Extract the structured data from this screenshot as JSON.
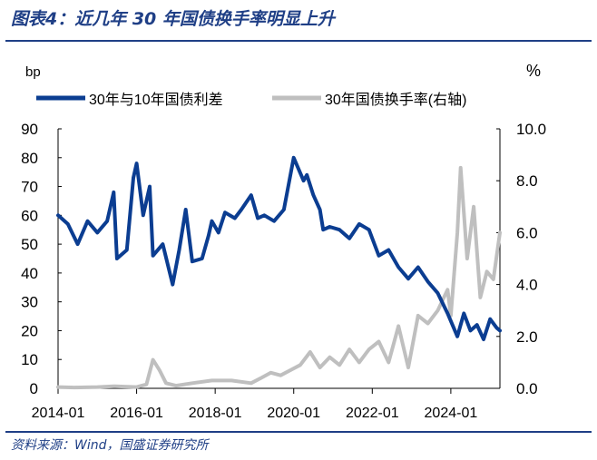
{
  "header": {
    "title": "图表4：近几年 30 年国债换手率明显上升"
  },
  "footer": {
    "source": "资料来源：Wind，国盛证券研究所"
  },
  "chart_data": {
    "type": "line",
    "title": "",
    "y_left_unit": "bp",
    "y_right_unit": "%",
    "ylim_left": [
      0,
      90
    ],
    "ylim_right": [
      0,
      10
    ],
    "y_left_ticks": [
      "0",
      "10",
      "20",
      "30",
      "40",
      "50",
      "60",
      "70",
      "80",
      "90"
    ],
    "y_right_ticks": [
      "0.0",
      "2.0",
      "4.0",
      "6.0",
      "8.0",
      "10.0"
    ],
    "x_ticks": [
      "2014-01",
      "2016-01",
      "2018-01",
      "2020-01",
      "2022-01",
      "2024-01"
    ],
    "x_range": [
      "2014-01",
      "2025-04"
    ],
    "legend_position": "top",
    "colors": {
      "spread": "#0b3d91",
      "turnover": "#bfbfbf",
      "axis": "#000000"
    },
    "series": [
      {
        "name": "30年与10年国债利差",
        "axis": "left",
        "x": [
          "2014-01",
          "2014-04",
          "2014-07",
          "2014-10",
          "2015-01",
          "2015-04",
          "2015-06",
          "2015-07",
          "2015-10",
          "2015-12",
          "2016-01",
          "2016-03",
          "2016-05",
          "2016-06",
          "2016-09",
          "2016-12",
          "2017-02",
          "2017-04",
          "2017-06",
          "2017-09",
          "2017-11",
          "2017-12",
          "2018-02",
          "2018-04",
          "2018-07",
          "2018-09",
          "2018-12",
          "2019-02",
          "2019-04",
          "2019-07",
          "2019-10",
          "2020-01",
          "2020-04",
          "2020-05",
          "2020-07",
          "2020-09",
          "2020-10",
          "2020-12",
          "2021-03",
          "2021-06",
          "2021-09",
          "2021-12",
          "2022-03",
          "2022-06",
          "2022-09",
          "2022-12",
          "2023-03",
          "2023-06",
          "2023-09",
          "2023-12",
          "2024-03",
          "2024-05",
          "2024-07",
          "2024-09",
          "2024-11",
          "2025-01",
          "2025-03",
          "2025-04"
        ],
        "values": [
          60,
          57,
          50,
          58,
          54,
          58,
          68,
          45,
          48,
          73,
          78,
          60,
          70,
          46,
          50,
          36,
          48,
          62,
          44,
          45,
          53,
          58,
          54,
          61,
          59,
          62,
          67,
          59,
          60,
          58,
          62,
          80,
          72,
          74,
          67,
          62,
          55,
          56,
          55,
          52,
          57,
          55,
          46,
          48,
          42,
          38,
          42,
          37,
          33,
          26,
          18,
          26,
          20,
          22,
          17,
          24,
          21,
          20
        ]
      },
      {
        "name": "30年国债换手率(右轴)",
        "axis": "right",
        "x": [
          "2014-01",
          "2014-06",
          "2015-01",
          "2015-06",
          "2016-01",
          "2016-04",
          "2016-06",
          "2016-08",
          "2016-10",
          "2017-01",
          "2017-06",
          "2017-12",
          "2018-06",
          "2018-12",
          "2019-03",
          "2019-06",
          "2019-09",
          "2019-12",
          "2020-03",
          "2020-06",
          "2020-09",
          "2020-12",
          "2021-03",
          "2021-06",
          "2021-09",
          "2021-12",
          "2022-03",
          "2022-06",
          "2022-09",
          "2022-12",
          "2023-03",
          "2023-06",
          "2023-09",
          "2023-12",
          "2024-01",
          "2024-03",
          "2024-04",
          "2024-06",
          "2024-08",
          "2024-10",
          "2024-12",
          "2025-02",
          "2025-04"
        ],
        "values": [
          0.05,
          0.03,
          0.05,
          0.08,
          0.05,
          0.15,
          1.1,
          0.7,
          0.2,
          0.1,
          0.2,
          0.3,
          0.3,
          0.2,
          0.4,
          0.6,
          0.5,
          0.7,
          0.9,
          1.4,
          0.8,
          1.2,
          0.9,
          1.5,
          1.0,
          1.5,
          1.8,
          1.0,
          2.4,
          0.8,
          2.8,
          2.5,
          3.0,
          3.8,
          2.8,
          6.0,
          8.5,
          5.0,
          7.0,
          3.5,
          4.5,
          4.2,
          6.0
        ]
      }
    ]
  }
}
